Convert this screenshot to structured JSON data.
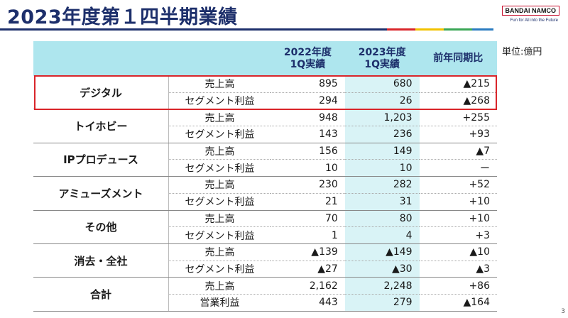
{
  "header": {
    "title": "2023年度第１四半期業績",
    "logo": "BANDAI NAMCO",
    "tagline": "Fun for All into the Future",
    "unit": "単位:億円",
    "page": "3"
  },
  "table": {
    "columns": [
      "2022年度\n1Q実績",
      "2023年度\n1Q実績",
      "前年同期比"
    ],
    "segments": [
      {
        "name": "デジタル",
        "rows": [
          [
            "売上高",
            "895",
            "680",
            "▲215"
          ],
          [
            "セグメント利益",
            "294",
            "26",
            "▲268"
          ]
        ]
      },
      {
        "name": "トイホビー",
        "rows": [
          [
            "売上高",
            "948",
            "1,203",
            "+255"
          ],
          [
            "セグメント利益",
            "143",
            "236",
            "+93"
          ]
        ]
      },
      {
        "name": "IPプロデュース",
        "rows": [
          [
            "売上高",
            "156",
            "149",
            "▲7"
          ],
          [
            "セグメント利益",
            "10",
            "10",
            "ー"
          ]
        ]
      },
      {
        "name": "アミューズメント",
        "rows": [
          [
            "売上高",
            "230",
            "282",
            "+52"
          ],
          [
            "セグメント利益",
            "21",
            "31",
            "+10"
          ]
        ]
      },
      {
        "name": "その他",
        "rows": [
          [
            "売上高",
            "70",
            "80",
            "+10"
          ],
          [
            "セグメント利益",
            "1",
            "4",
            "+3"
          ]
        ]
      },
      {
        "name": "消去・全社",
        "rows": [
          [
            "売上高",
            "▲139",
            "▲149",
            "▲10"
          ],
          [
            "セグメント利益",
            "▲27",
            "▲30",
            "▲3"
          ]
        ]
      },
      {
        "name": "合計",
        "rows": [
          [
            "売上高",
            "2,162",
            "2,248",
            "+86"
          ],
          [
            "営業利益",
            "443",
            "279",
            "▲164"
          ]
        ]
      }
    ]
  }
}
